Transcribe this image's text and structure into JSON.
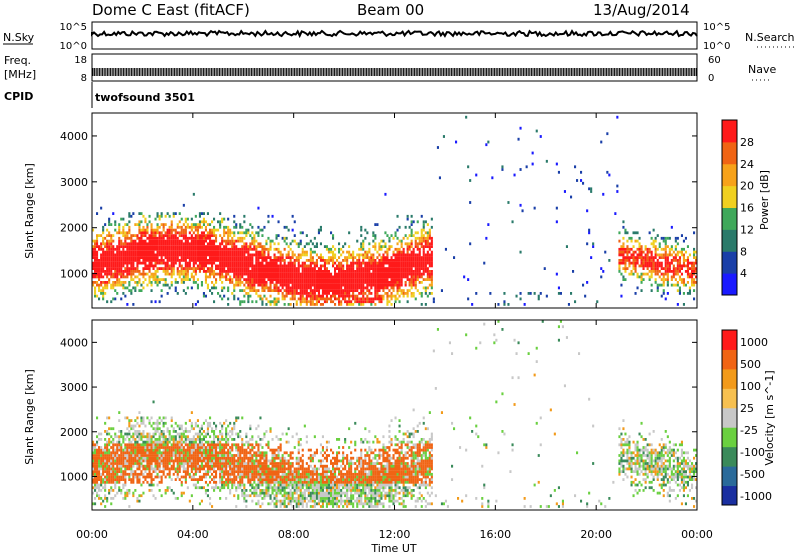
{
  "header": {
    "station": "Dome C East (fitACF)",
    "beam": "Beam 00",
    "date": "13/Aug/2014"
  },
  "strips": {
    "nsky_label": "N.Sky",
    "nsky_ticks": [
      "10^5",
      "10^0"
    ],
    "nsearch_label": "N.Search",
    "nsearch_ticks": [
      "10^5",
      "10^0"
    ],
    "freq_label_line1": "Freq.",
    "freq_label_line2": "[MHz]",
    "freq_ticks": [
      "18",
      "8"
    ],
    "nave_label": "Nave",
    "nave_ticks": [
      "60",
      "0"
    ],
    "cpid_label": "CPID",
    "cpid_value": "twofsound 3501"
  },
  "colors": {
    "power_scale": [
      "#1a1aff",
      "#1a3fa8",
      "#2a7a6a",
      "#3fa85a",
      "#f0d020",
      "#f7a21a",
      "#f06414",
      "#ff1a1a"
    ],
    "velocity_scale": [
      "#ff1a1a",
      "#f06414",
      "#f29a1a",
      "#f7c050",
      "#c8c8c8",
      "#6ad040",
      "#3a8a5a",
      "#2a6a9a",
      "#1a2fa0"
    ]
  },
  "chart_data": [
    {
      "type": "heatmap",
      "name": "power-panel",
      "ylabel": "Slant Range [km]",
      "yticks": [
        1000,
        2000,
        3000,
        4000
      ],
      "ylim": [
        250,
        4500
      ],
      "xlim": [
        0,
        24
      ],
      "colorbar": {
        "label": "Power [dB]",
        "range": [
          0,
          32
        ],
        "ticks": [
          "28",
          "24",
          "20",
          "16",
          "12",
          "8",
          "4"
        ]
      }
    },
    {
      "type": "heatmap",
      "name": "velocity-panel",
      "ylabel": "Slant Range [km]",
      "yticks": [
        1000,
        2000,
        3000,
        4000
      ],
      "ylim": [
        250,
        4500
      ],
      "xlim": [
        0,
        24
      ],
      "xlabel": "Time UT",
      "xticks": [
        "00:00",
        "04:00",
        "08:00",
        "12:00",
        "16:00",
        "20:00",
        "00:00"
      ],
      "colorbar": {
        "label": "Velocity [m s^-1]",
        "ticks": [
          "1000",
          "500",
          "100",
          "25",
          "-25",
          "-100",
          "-500",
          "-1000"
        ]
      }
    }
  ]
}
